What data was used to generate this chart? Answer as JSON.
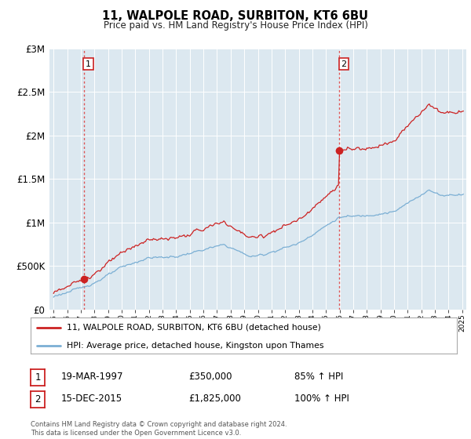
{
  "title": "11, WALPOLE ROAD, SURBITON, KT6 6BU",
  "subtitle": "Price paid vs. HM Land Registry's House Price Index (HPI)",
  "legend_line1": "11, WALPOLE ROAD, SURBITON, KT6 6BU (detached house)",
  "legend_line2": "HPI: Average price, detached house, Kingston upon Thames",
  "annotation1_label": "1",
  "annotation1_date": "19-MAR-1997",
  "annotation1_price": "£350,000",
  "annotation1_hpi": "85% ↑ HPI",
  "annotation2_label": "2",
  "annotation2_date": "15-DEC-2015",
  "annotation2_price": "£1,825,000",
  "annotation2_hpi": "100% ↑ HPI",
  "footer": "Contains HM Land Registry data © Crown copyright and database right 2024.\nThis data is licensed under the Open Government Licence v3.0.",
  "sale1_year": 1997.21,
  "sale1_value": 350000,
  "sale2_year": 2015.96,
  "sale2_value": 1825000,
  "hpi_color": "#7bafd4",
  "sale_color": "#cc2222",
  "dashed_color": "#dd4444",
  "bg_color": "#dce8f0",
  "ylim_max": 3000000,
  "xlim_min": 1994.7,
  "xlim_max": 2025.3
}
